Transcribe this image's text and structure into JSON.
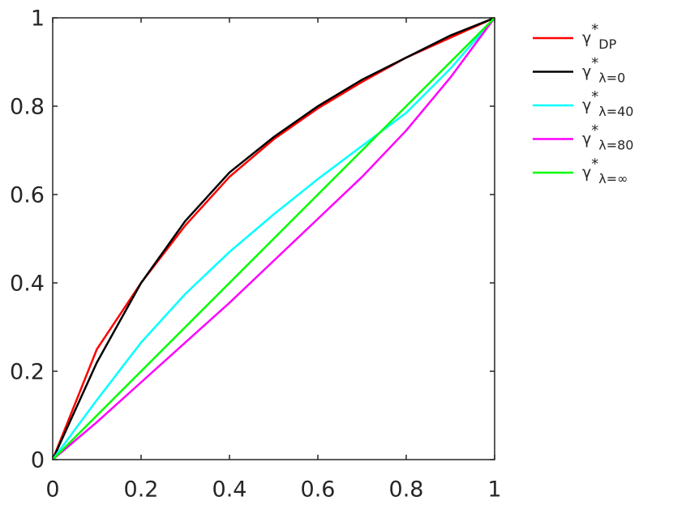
{
  "chart_data": {
    "type": "line",
    "x": [
      0,
      0.1,
      0.2,
      0.3,
      0.4,
      0.5,
      0.6,
      0.7,
      0.8,
      0.9,
      1
    ],
    "series": [
      {
        "name": "γ*DP",
        "color": "#ff0000",
        "values": [
          0,
          0.25,
          0.4,
          0.53,
          0.64,
          0.725,
          0.795,
          0.855,
          0.91,
          0.955,
          1
        ]
      },
      {
        "name": "γ*λ=0",
        "color": "#000000",
        "values": [
          0,
          0.22,
          0.4,
          0.54,
          0.65,
          0.73,
          0.8,
          0.86,
          0.91,
          0.96,
          1
        ]
      },
      {
        "name": "γ*λ=40",
        "color": "#00ffff",
        "values": [
          0,
          0.135,
          0.265,
          0.375,
          0.47,
          0.555,
          0.635,
          0.71,
          0.785,
          0.885,
          1
        ]
      },
      {
        "name": "γ*λ=80",
        "color": "#ff00ff",
        "values": [
          0,
          0.085,
          0.175,
          0.265,
          0.355,
          0.45,
          0.545,
          0.64,
          0.745,
          0.865,
          1
        ]
      },
      {
        "name": "γ*λ=∞",
        "color": "#00ff00",
        "values": [
          0,
          0.1,
          0.2,
          0.3,
          0.4,
          0.5,
          0.6,
          0.7,
          0.8,
          0.9,
          1
        ]
      }
    ],
    "xlim": [
      0,
      1
    ],
    "ylim": [
      0,
      1
    ],
    "xticks": [
      0,
      0.2,
      0.4,
      0.6,
      0.8,
      1
    ],
    "yticks": [
      0,
      0.2,
      0.4,
      0.6,
      0.8,
      1
    ],
    "legend": "outside-right"
  }
}
